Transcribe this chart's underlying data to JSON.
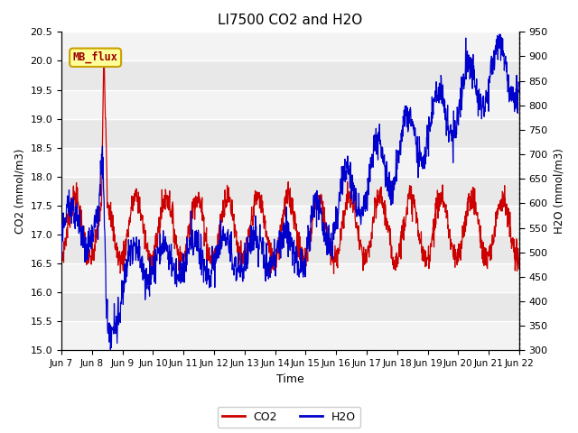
{
  "title": "LI7500 CO2 and H2O",
  "xlabel": "Time",
  "ylabel_left": "CO2 (mmol/m3)",
  "ylabel_right": "H2O (mmol/m3)",
  "co2_ylim": [
    15.0,
    20.5
  ],
  "h2o_ylim": [
    300,
    950
  ],
  "co2_yticks": [
    15.0,
    15.5,
    16.0,
    16.5,
    17.0,
    17.5,
    18.0,
    18.5,
    19.0,
    19.5,
    20.0,
    20.5
  ],
  "h2o_yticks": [
    300,
    350,
    400,
    450,
    500,
    550,
    600,
    650,
    700,
    750,
    800,
    850,
    900,
    950
  ],
  "xtick_labels": [
    "Jun 7",
    "Jun 8",
    "Jun 9",
    "Jun 10",
    "Jun 11",
    "Jun 12",
    "Jun 13",
    "Jun 14",
    "Jun 15",
    "Jun 16",
    "Jun 17",
    "Jun 18",
    "Jun 19",
    "Jun 20",
    "Jun 21",
    "Jun 22"
  ],
  "co2_color": "#cc0000",
  "h2o_color": "#0000cc",
  "plot_bg_color": "#e8e8e8",
  "annotation_text": "MB_flux",
  "annotation_bg": "#ffff99",
  "annotation_border": "#c8a000",
  "legend_co2": "CO2",
  "legend_h2o": "H2O"
}
